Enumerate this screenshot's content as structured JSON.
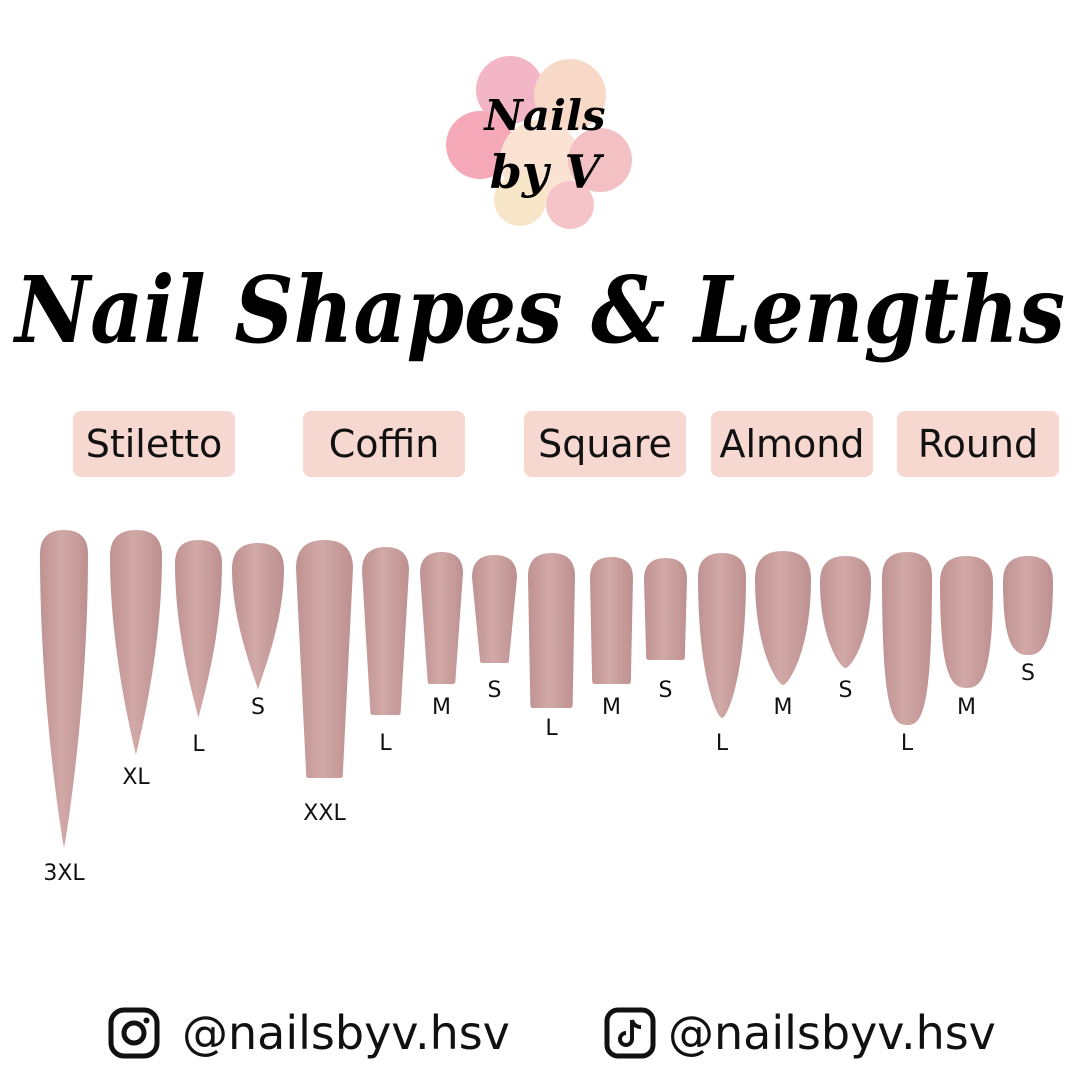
{
  "logo": {
    "text_line1": "Nails",
    "text_line2": "by V"
  },
  "title": "Nail Shapes & Lengths",
  "shapes": [
    {
      "label": "Stiletto",
      "sizes": [
        "3XL",
        "XL",
        "L",
        "S"
      ]
    },
    {
      "label": "Coffin",
      "sizes": [
        "XXL",
        "L",
        "M",
        "S"
      ]
    },
    {
      "label": "Square",
      "sizes": [
        "L",
        "M",
        "S"
      ]
    },
    {
      "label": "Almond",
      "sizes": [
        "L",
        "M",
        "S"
      ]
    },
    {
      "label": "Round",
      "sizes": [
        "L",
        "M",
        "S"
      ]
    }
  ],
  "colors": {
    "nail": "#c79d9c",
    "label_bg": "#f7d8d1",
    "text": "#111111"
  },
  "socials": [
    {
      "icon": "instagram-icon",
      "handle": "@nailsbyv.hsv"
    },
    {
      "icon": "tiktok-icon",
      "handle": "@nailsbyv.hsv"
    }
  ]
}
